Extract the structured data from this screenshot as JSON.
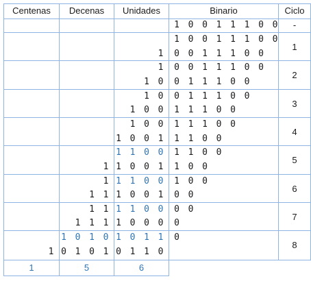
{
  "headers": {
    "centenas": "Centenas",
    "decenas": "Decenas",
    "unidades": "Unidades",
    "binario": "Binario",
    "ciclo": "Ciclo"
  },
  "colors": {
    "grid": "#8db4e2",
    "text": "#1a1a1a",
    "highlight": "#2e74b5"
  },
  "initial": {
    "binario": "10011100",
    "ciclo": "-"
  },
  "cycles": [
    {
      "label": "1",
      "rows": [
        {
          "centenas": "",
          "decenas": "",
          "unidades": "",
          "unidades_style": "normal",
          "binario": "10011100"
        },
        {
          "centenas": "",
          "decenas": "",
          "unidades": "1",
          "unidades_style": "normal",
          "binario": "0011100"
        }
      ]
    },
    {
      "label": "2",
      "rows": [
        {
          "centenas": "",
          "decenas": "",
          "unidades": "1",
          "unidades_style": "normal",
          "binario": "0011100"
        },
        {
          "centenas": "",
          "decenas": "",
          "unidades": "10",
          "unidades_style": "normal",
          "binario": "011100"
        }
      ]
    },
    {
      "label": "3",
      "rows": [
        {
          "centenas": "",
          "decenas": "",
          "unidades": "10",
          "unidades_style": "normal",
          "binario": "011100"
        },
        {
          "centenas": "",
          "decenas": "",
          "unidades": "100",
          "unidades_style": "normal",
          "binario": "11100"
        }
      ]
    },
    {
      "label": "4",
      "rows": [
        {
          "centenas": "",
          "decenas": "",
          "unidades": "100",
          "unidades_style": "normal",
          "binario": "11100"
        },
        {
          "centenas": "",
          "decenas": "",
          "unidades": "1001",
          "unidades_style": "normal",
          "binario": "1100"
        }
      ]
    },
    {
      "label": "5",
      "rows": [
        {
          "centenas": "",
          "decenas": "",
          "unidades": "1100",
          "unidades_style": "blue",
          "binario": "1100"
        },
        {
          "centenas": "",
          "decenas": "1",
          "unidades": "1001",
          "unidades_style": "normal",
          "binario": "100"
        }
      ]
    },
    {
      "label": "6",
      "rows": [
        {
          "centenas": "",
          "decenas": "1",
          "unidades": "1100",
          "unidades_style": "blue",
          "binario": "100"
        },
        {
          "centenas": "",
          "decenas": "11",
          "unidades": "1001",
          "unidades_style": "normal",
          "binario": "00"
        }
      ]
    },
    {
      "label": "7",
      "rows": [
        {
          "centenas": "",
          "decenas": "11",
          "unidades": "1100",
          "unidades_style": "blue",
          "binario": "00"
        },
        {
          "centenas": "",
          "decenas": "111",
          "unidades": "1000",
          "unidades_style": "normal",
          "binario": "0"
        }
      ]
    },
    {
      "label": "8",
      "rows": [
        {
          "centenas": "",
          "decenas": "1010",
          "decenas_style": "blue",
          "unidades": "1011",
          "unidades_style": "blue",
          "binario": "0"
        },
        {
          "centenas": "1",
          "decenas": "0101",
          "unidades": "0110",
          "unidades_style": "normal",
          "binario": ""
        }
      ]
    }
  ],
  "result": {
    "centenas": "1",
    "decenas": "5",
    "unidades": "6"
  }
}
